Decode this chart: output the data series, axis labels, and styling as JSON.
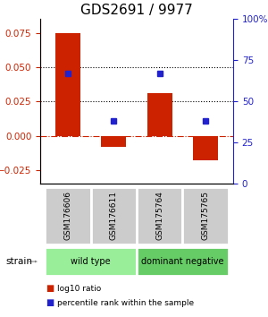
{
  "title": "GDS2691 / 9977",
  "samples": [
    "GSM176606",
    "GSM176611",
    "GSM175764",
    "GSM175765"
  ],
  "log10_ratio": [
    0.075,
    -0.008,
    0.031,
    -0.018
  ],
  "percentile_rank_pct": [
    67,
    38,
    67,
    38
  ],
  "bar_color": "#cc2200",
  "dot_color": "#2222cc",
  "ylim_left": [
    -0.035,
    0.085
  ],
  "ylim_right": [
    0,
    100
  ],
  "yticks_left": [
    -0.025,
    0,
    0.025,
    0.05,
    0.075
  ],
  "yticks_right": [
    0,
    25,
    50,
    75,
    100
  ],
  "hline_y": [
    0.025,
    0.05
  ],
  "zero_line_y": 0,
  "groups": [
    {
      "label": "wild type",
      "samples": [
        0,
        1
      ],
      "color": "#99ee99"
    },
    {
      "label": "dominant negative",
      "samples": [
        2,
        3
      ],
      "color": "#66cc66"
    }
  ],
  "strain_label": "strain",
  "legend_items": [
    {
      "color": "#cc2200",
      "label": "log10 ratio"
    },
    {
      "color": "#2222cc",
      "label": "percentile rank within the sample"
    }
  ],
  "bar_width": 0.55,
  "background_color": "#ffffff",
  "sample_box_color": "#cccccc",
  "title_fontsize": 11,
  "tick_fontsize": 7.5,
  "label_fontsize": 7
}
